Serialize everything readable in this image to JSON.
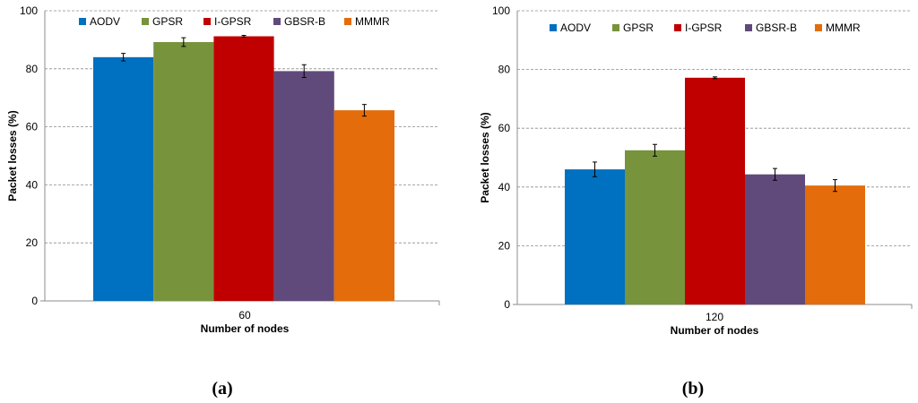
{
  "chart_data": [
    {
      "type": "bar",
      "panel_label": "(a)",
      "categories": [
        "60"
      ],
      "series": [
        {
          "name": "AODV",
          "color": "#0070C0",
          "values": [
            84
          ],
          "error": [
            1.3
          ]
        },
        {
          "name": "GPSR",
          "color": "#77933C",
          "values": [
            89.2
          ],
          "error": [
            1.5
          ]
        },
        {
          "name": "I-GPSR",
          "color": "#C00000",
          "values": [
            91.2
          ],
          "error": [
            0.3
          ]
        },
        {
          "name": "GBSR-B",
          "color": "#604A7B",
          "values": [
            79.2
          ],
          "error": [
            2.2
          ]
        },
        {
          "name": "MMMR",
          "color": "#E46C0A",
          "values": [
            65.7
          ],
          "error": [
            2.0
          ]
        }
      ],
      "title": "",
      "xlabel": "Number of nodes",
      "ylabel": "Packet losses (%)",
      "ylim": [
        0,
        100
      ],
      "yticks": [
        "0",
        "20",
        "40",
        "60",
        "80",
        "100"
      ],
      "grid": true,
      "legend": "top"
    },
    {
      "type": "bar",
      "panel_label": "(b)",
      "categories": [
        "120"
      ],
      "series": [
        {
          "name": "AODV",
          "color": "#0070C0",
          "values": [
            46
          ],
          "error": [
            2.5
          ]
        },
        {
          "name": "GPSR",
          "color": "#77933C",
          "values": [
            52.5
          ],
          "error": [
            2.0
          ]
        },
        {
          "name": "I-GPSR",
          "color": "#C00000",
          "values": [
            77.2
          ],
          "error": [
            0.3
          ]
        },
        {
          "name": "GBSR-B",
          "color": "#604A7B",
          "values": [
            44.3
          ],
          "error": [
            2.0
          ]
        },
        {
          "name": "MMMR",
          "color": "#E46C0A",
          "values": [
            40.5
          ],
          "error": [
            2.0
          ]
        }
      ],
      "title": "",
      "xlabel": "Number of nodes",
      "ylabel": "Packet losses (%)",
      "ylim": [
        0,
        100
      ],
      "yticks": [
        "0",
        "20",
        "40",
        "60",
        "80",
        "100"
      ],
      "grid": true,
      "legend": "top"
    }
  ]
}
